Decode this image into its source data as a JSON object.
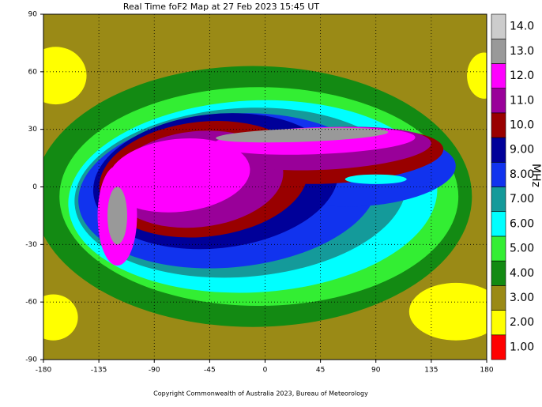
{
  "chart_data": {
    "type": "contour-map",
    "title": "Real Time foF2 Map at 27 Feb 2023 15:45 UT",
    "footer": "Copyright Commonwealth of Australia 2023, Bureau of Meteorology",
    "xlim": [
      -180,
      180
    ],
    "xticks": [
      -180,
      -135,
      -90,
      -45,
      0,
      45,
      90,
      135,
      180
    ],
    "ylim": [
      -90,
      90
    ],
    "yticks": [
      -90,
      -60,
      -30,
      0,
      30,
      60,
      90
    ],
    "grid": true,
    "colorbar": {
      "label": "MHz",
      "levels": [
        {
          "value": 1,
          "label": "1.00"
        },
        {
          "value": 2,
          "label": "2.00"
        },
        {
          "value": 3,
          "label": "3.00"
        },
        {
          "value": 4,
          "label": "4.00"
        },
        {
          "value": 5,
          "label": "5.00"
        },
        {
          "value": 6,
          "label": "6.00"
        },
        {
          "value": 7,
          "label": "7.00"
        },
        {
          "value": 8,
          "label": "8.00"
        },
        {
          "value": 9,
          "label": "9.00"
        },
        {
          "value": 10,
          "label": "10.0"
        },
        {
          "value": 11,
          "label": "11.0"
        },
        {
          "value": 12,
          "label": "12.0"
        },
        {
          "value": 13,
          "label": "13.0"
        },
        {
          "value": 14,
          "label": "14.0"
        }
      ],
      "colors": [
        "#ff0000",
        "#ffff00",
        "#9a8a16",
        "#138a13",
        "#33ee33",
        "#00ffff",
        "#149a9a",
        "#1133ee",
        "#000099",
        "#990000",
        "#990099",
        "#ff00ff",
        "#999999",
        "#cccccc"
      ]
    }
  }
}
